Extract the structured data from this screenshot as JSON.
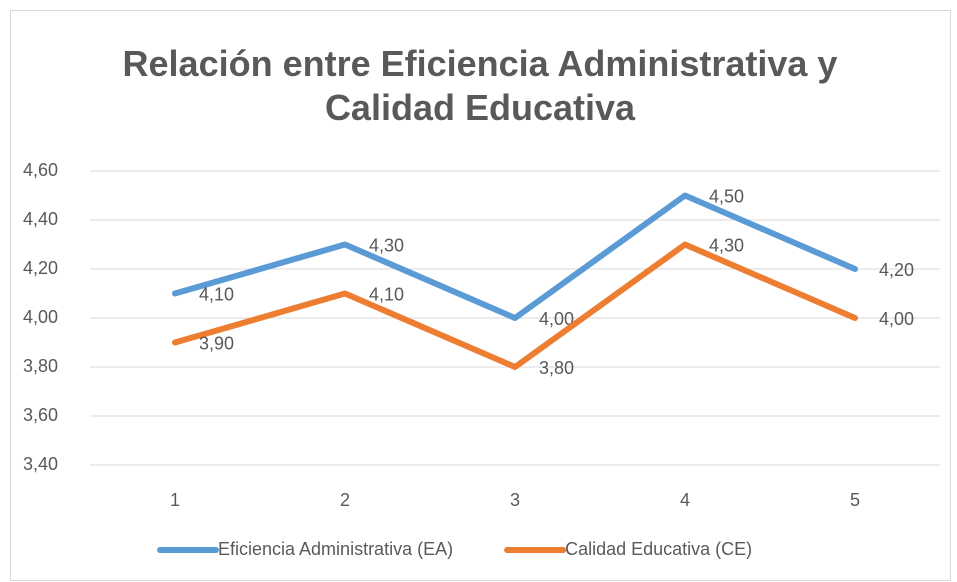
{
  "chart_data": {
    "type": "line",
    "title": "Relación entre Eficiencia Administrativa y Calidad Educativa",
    "categories": [
      "1",
      "2",
      "3",
      "4",
      "5"
    ],
    "series": [
      {
        "name": "Eficiencia Administrativa (EA)",
        "color": "#5b9bd5",
        "values": [
          4.1,
          4.3,
          4.0,
          4.5,
          4.2
        ],
        "value_labels": [
          "4,10",
          "4,30",
          "4,00",
          "4,50",
          "4,20"
        ]
      },
      {
        "name": "Calidad Educativa (CE)",
        "color": "#ed7d31",
        "values": [
          3.9,
          4.1,
          3.8,
          4.3,
          4.0
        ],
        "value_labels": [
          "3,90",
          "4,10",
          "3,80",
          "4,30",
          "4,00"
        ]
      }
    ],
    "ylim": [
      3.4,
      4.6
    ],
    "yticks": [
      {
        "value": 3.4,
        "label": "3,40"
      },
      {
        "value": 3.6,
        "label": "3,60"
      },
      {
        "value": 3.8,
        "label": "3,80"
      },
      {
        "value": 4.0,
        "label": "4,00"
      },
      {
        "value": 4.2,
        "label": "4,20"
      },
      {
        "value": 4.4,
        "label": "4,40"
      },
      {
        "value": 4.6,
        "label": "4,60"
      }
    ],
    "grid": true,
    "legend": "bottom"
  }
}
